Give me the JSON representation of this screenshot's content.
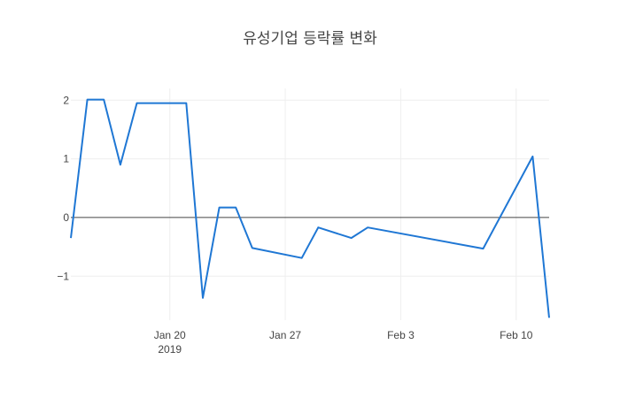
{
  "chart_data": {
    "type": "line",
    "title": "유성기업 등락률 변화",
    "xlabel": "",
    "ylabel": "",
    "x_range": [
      "2019-01-14",
      "2019-02-12"
    ],
    "y_range": [
      -1.75,
      2.2
    ],
    "grid": true,
    "zero_line": true,
    "x_ticks": [
      {
        "date": "2019-01-20",
        "label": "Jan 20",
        "sublabel": "2019"
      },
      {
        "date": "2019-01-27",
        "label": "Jan 27",
        "sublabel": ""
      },
      {
        "date": "2019-02-03",
        "label": "Feb 3",
        "sublabel": ""
      },
      {
        "date": "2019-02-10",
        "label": "Feb 10",
        "sublabel": ""
      }
    ],
    "y_ticks": [
      {
        "value": 2,
        "label": "2"
      },
      {
        "value": 1,
        "label": "1"
      },
      {
        "value": 0,
        "label": "0"
      },
      {
        "value": -1,
        "label": "−1"
      }
    ],
    "series": [
      {
        "color": "#1f77d4",
        "points": [
          {
            "x": "2019-01-14",
            "y": -0.35
          },
          {
            "x": "2019-01-15",
            "y": 2.01
          },
          {
            "x": "2019-01-16",
            "y": 2.01
          },
          {
            "x": "2019-01-17",
            "y": 0.9
          },
          {
            "x": "2019-01-18",
            "y": 1.95
          },
          {
            "x": "2019-01-21",
            "y": 1.95
          },
          {
            "x": "2019-01-22",
            "y": -1.37
          },
          {
            "x": "2019-01-23",
            "y": 0.17
          },
          {
            "x": "2019-01-24",
            "y": 0.17
          },
          {
            "x": "2019-01-25",
            "y": -0.52
          },
          {
            "x": "2019-01-28",
            "y": -0.69
          },
          {
            "x": "2019-01-29",
            "y": -0.17
          },
          {
            "x": "2019-01-31",
            "y": -0.35
          },
          {
            "x": "2019-02-01",
            "y": -0.17
          },
          {
            "x": "2019-02-08",
            "y": -0.53
          },
          {
            "x": "2019-02-11",
            "y": 1.04
          },
          {
            "x": "2019-02-12",
            "y": -1.71
          }
        ]
      }
    ]
  }
}
